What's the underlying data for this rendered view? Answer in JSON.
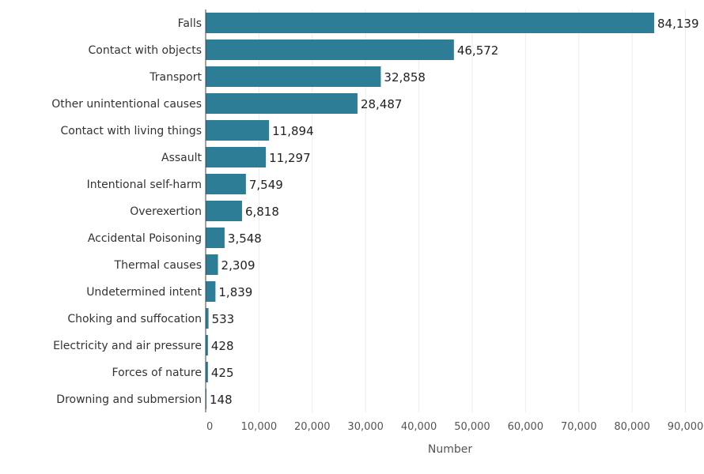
{
  "chart_data": {
    "type": "bar",
    "orientation": "horizontal",
    "categories": [
      "Falls",
      "Contact with objects",
      "Transport",
      "Other unintentional causes",
      "Contact with living things",
      "Assault",
      "Intentional self-harm",
      "Overexertion",
      "Accidental Poisoning",
      "Thermal causes",
      "Undetermined intent",
      "Choking and suffocation",
      "Electricity and air pressure",
      "Forces of nature",
      "Drowning and submersion"
    ],
    "values": [
      84139,
      46572,
      32858,
      28487,
      11894,
      11297,
      7549,
      6818,
      3548,
      2309,
      1839,
      533,
      428,
      425,
      148
    ],
    "value_labels": [
      "84,139",
      "46,572",
      "32,858",
      "28,487",
      "11,894",
      "11,297",
      "7,549",
      "6,818",
      "3,548",
      "2,309",
      "1,839",
      "533",
      "428",
      "425",
      "148"
    ],
    "xlabel": "Number",
    "ylabel": "",
    "xlim": [
      0,
      92000
    ],
    "x_ticks": [
      0,
      10000,
      20000,
      30000,
      40000,
      50000,
      60000,
      70000,
      80000,
      90000
    ],
    "x_tick_labels": [
      "0",
      "10,000",
      "20,000",
      "30,000",
      "40,000",
      "50,000",
      "60,000",
      "70,000",
      "80,000",
      "90,000"
    ],
    "grid": true,
    "bar_color": "#2e7d97",
    "grid_color": "#ececec",
    "axis_color": "#444444"
  }
}
